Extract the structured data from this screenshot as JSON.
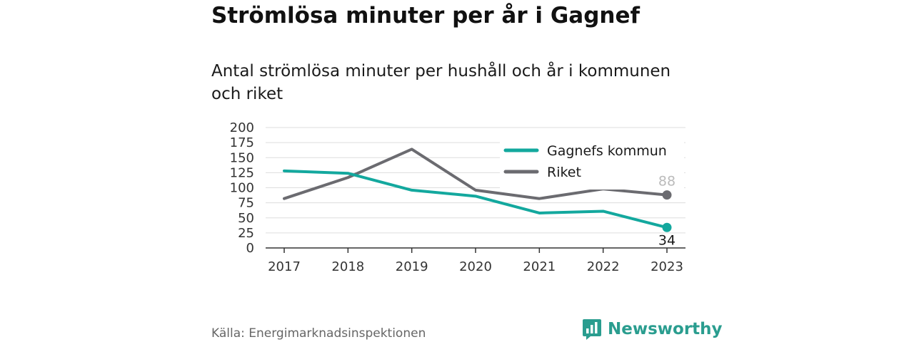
{
  "title": "Strömlösa minuter per år i Gagnef",
  "subtitle": "Antal strömlösa minuter per hushåll och år i kommunen och riket",
  "source": "Källa: Energimarknadsinspektionen",
  "brand": "Newsworthy",
  "colors": {
    "gagnef": "#13a89e",
    "riket": "#6b6b70",
    "grid": "#dddddd",
    "brand": "#2a9d8f"
  },
  "chart_data": {
    "type": "line",
    "title": "Strömlösa minuter per år i Gagnef",
    "subtitle": "Antal strömlösa minuter per hushåll och år i kommunen och riket",
    "x": [
      "2017",
      "2018",
      "2019",
      "2020",
      "2021",
      "2022",
      "2023"
    ],
    "yticks": [
      0,
      25,
      50,
      75,
      100,
      125,
      150,
      175,
      200
    ],
    "ylim": [
      0,
      200
    ],
    "grid": true,
    "legend": "top-right",
    "series": [
      {
        "name": "Gagnefs kommun",
        "values": [
          128,
          124,
          96,
          86,
          58,
          61,
          34
        ],
        "end_label": "34"
      },
      {
        "name": "Riket",
        "values": [
          82,
          117,
          164,
          96,
          82,
          98,
          88
        ],
        "end_label": "88"
      }
    ]
  }
}
